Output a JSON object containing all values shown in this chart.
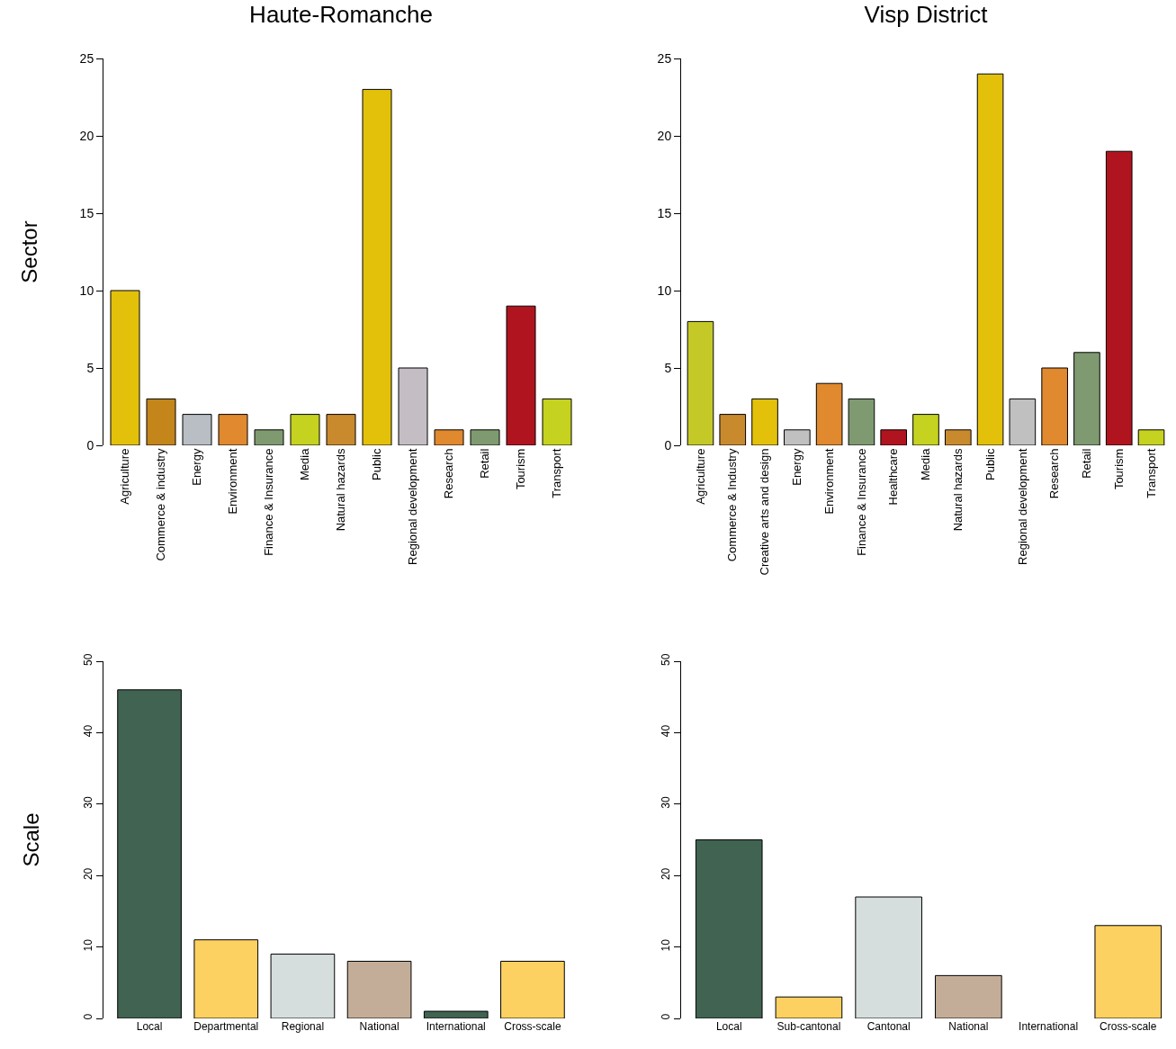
{
  "chart_data": [
    {
      "type": "bar",
      "title": "Haute-Romanche",
      "ylabel": "Sector",
      "categories": [
        "Agriculture",
        "Commerce & industry",
        "Energy",
        "Environment",
        "Finance & Insurance",
        "Media",
        "Natural hazards",
        "Public",
        "Regional development",
        "Research",
        "Retail",
        "Tourism",
        "Transport"
      ],
      "values": [
        10,
        3,
        2,
        2,
        1,
        2,
        2,
        23,
        5,
        1,
        1,
        9,
        3
      ],
      "colors": [
        "#e3c10a",
        "#c4861a",
        "#b8bec4",
        "#e0892e",
        "#7f9a70",
        "#c5d21f",
        "#c98a2e",
        "#e3c10a",
        "#c4bec4",
        "#e0892e",
        "#7f9a70",
        "#b0141e",
        "#c5d21f"
      ],
      "ylim": [
        0,
        25
      ],
      "yticks": [
        0,
        5,
        10,
        15,
        20,
        25
      ]
    },
    {
      "type": "bar",
      "title": "Visp District",
      "categories": [
        "Agriculture",
        "Commerce & Industry",
        "Creative arts and design",
        "Energy",
        "Environment",
        "Finance & Insurance",
        "Healthcare",
        "Media",
        "Natural hazards",
        "Public",
        "Regional development",
        "Research",
        "Retail",
        "Tourism",
        "Transport"
      ],
      "values": [
        8,
        2,
        3,
        1,
        4,
        3,
        1,
        2,
        1,
        24,
        3,
        5,
        6,
        19,
        1
      ],
      "colors": [
        "#c5c928",
        "#c98a2e",
        "#e3c10a",
        "#c0c0c0",
        "#e0892e",
        "#7f9a70",
        "#b0141e",
        "#c5d21f",
        "#c98a2e",
        "#e3c10a",
        "#c0c0c0",
        "#e0892e",
        "#7f9a70",
        "#b0141e",
        "#c5d21f"
      ],
      "ylim": [
        0,
        25
      ],
      "yticks": [
        0,
        5,
        10,
        15,
        20,
        25
      ]
    },
    {
      "type": "bar",
      "ylabel": "Scale",
      "categories": [
        "Local",
        "Departmental",
        "Regional",
        "National",
        "International",
        "Cross-scale"
      ],
      "values": [
        46,
        11,
        9,
        8,
        1,
        8
      ],
      "colors": [
        "#416352",
        "#fdd161",
        "#d5dedc",
        "#c4ad98",
        "#416352",
        "#fdd161"
      ],
      "ylim": [
        0,
        50
      ],
      "yticks": [
        0,
        10,
        20,
        30,
        40,
        50
      ]
    },
    {
      "type": "bar",
      "categories": [
        "Local",
        "Sub-cantonal",
        "Cantonal",
        "National",
        "International",
        "Cross-scale"
      ],
      "values": [
        25,
        3,
        17,
        6,
        0,
        13
      ],
      "colors": [
        "#416352",
        "#fdd161",
        "#d5dedc",
        "#c4ad98",
        "#416352",
        "#fdd161"
      ],
      "ylim": [
        0,
        50
      ],
      "yticks": [
        0,
        10,
        20,
        30,
        40,
        50
      ]
    }
  ]
}
